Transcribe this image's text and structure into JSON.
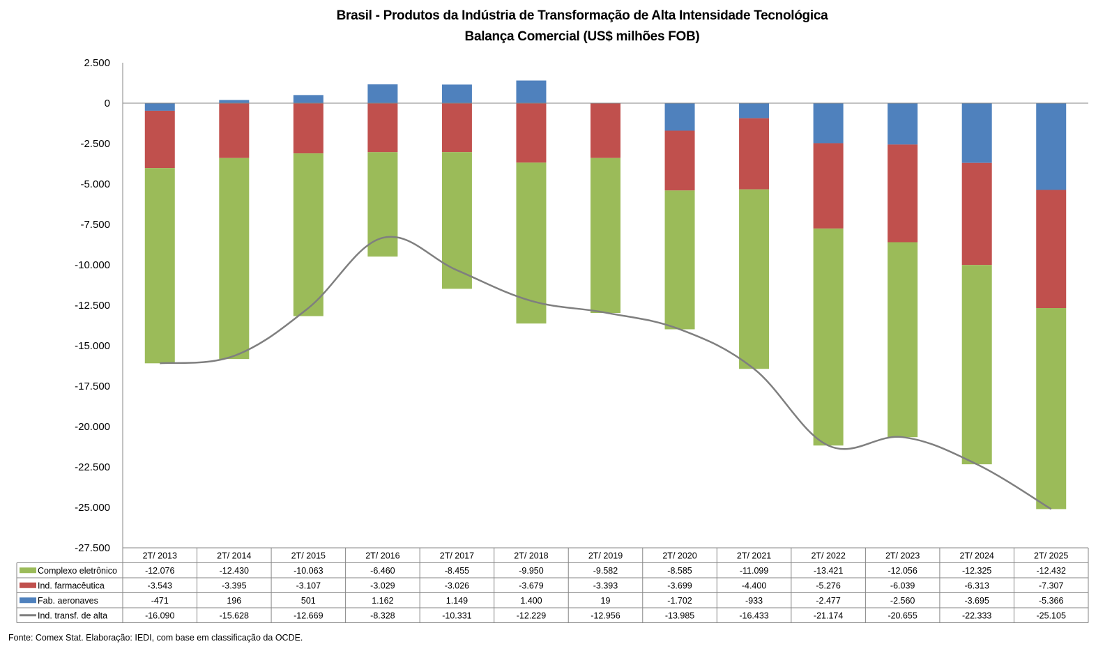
{
  "chart_data": {
    "type": "bar",
    "stacked": true,
    "title": "Brasil - Produtos da Indústria de Transformação de Alta Intensidade Tecnológica",
    "subtitle": "Balança Comercial (US$ milhões FOB)",
    "xlabel": "",
    "ylabel": "",
    "ylim": [
      -27500,
      2500
    ],
    "ytick_step": 2500,
    "yticks": [
      "2.500",
      "0",
      "-2.500",
      "-5.000",
      "-7.500",
      "-10.000",
      "-12.500",
      "-15.000",
      "-17.500",
      "-20.000",
      "-22.500",
      "-25.000",
      "-27.500"
    ],
    "grid": false,
    "legend": "data-table-bottom",
    "categories": [
      "2T/ 2013",
      "2T/ 2014",
      "2T/ 2015",
      "2T/ 2016",
      "2T/ 2017",
      "2T/ 2018",
      "2T/ 2019",
      "2T/ 2020",
      "2T/ 2021",
      "2T/ 2022",
      "2T/ 2023",
      "2T/ 2024",
      "2T/ 2025"
    ],
    "series": [
      {
        "name": "Complexo eletrônico",
        "kind": "bar",
        "color": "#9BBB59",
        "values": [
          -12076,
          -12430,
          -10063,
          -6460,
          -8455,
          -9950,
          -9582,
          -8585,
          -11099,
          -13421,
          -12056,
          -12325,
          -12432
        ],
        "labels": [
          "-12.076",
          "-12.430",
          "-10.063",
          "-6.460",
          "-8.455",
          "-9.950",
          "-9.582",
          "-8.585",
          "-11.099",
          "-13.421",
          "-12.056",
          "-12.325",
          "-12.432"
        ]
      },
      {
        "name": "Ind. farmacêutica",
        "kind": "bar",
        "color": "#C0504D",
        "values": [
          -3543,
          -3395,
          -3107,
          -3029,
          -3026,
          -3679,
          -3393,
          -3699,
          -4400,
          -5276,
          -6039,
          -6313,
          -7307
        ],
        "labels": [
          "-3.543",
          "-3.395",
          "-3.107",
          "-3.029",
          "-3.026",
          "-3.679",
          "-3.393",
          "-3.699",
          "-4.400",
          "-5.276",
          "-6.039",
          "-6.313",
          "-7.307"
        ]
      },
      {
        "name": "Fab. aeronaves",
        "kind": "bar",
        "color": "#4F81BD",
        "values": [
          -471,
          196,
          501,
          1162,
          1149,
          1400,
          19,
          -1702,
          -933,
          -2477,
          -2560,
          -3695,
          -5366
        ],
        "labels": [
          "-471",
          "196",
          "501",
          "1.162",
          "1.149",
          "1.400",
          "19",
          "-1.702",
          "-933",
          "-2.477",
          "-2.560",
          "-3.695",
          "-5.366"
        ]
      },
      {
        "name": "Ind. transf. de alta",
        "kind": "line",
        "color": "#7F7F7F",
        "values": [
          -16090,
          -15628,
          -12669,
          -8328,
          -10331,
          -12229,
          -12956,
          -13985,
          -16433,
          -21174,
          -20655,
          -22333,
          -25105
        ],
        "labels": [
          "-16.090",
          "-15.628",
          "-12.669",
          "-8.328",
          "-10.331",
          "-12.229",
          "-12.956",
          "-13.985",
          "-16.433",
          "-21.174",
          "-20.655",
          "-22.333",
          "-25.105"
        ]
      }
    ]
  },
  "source_note": "Fonte:  Comex Stat. Elaboração: IEDI, com base em classificação da OCDE."
}
